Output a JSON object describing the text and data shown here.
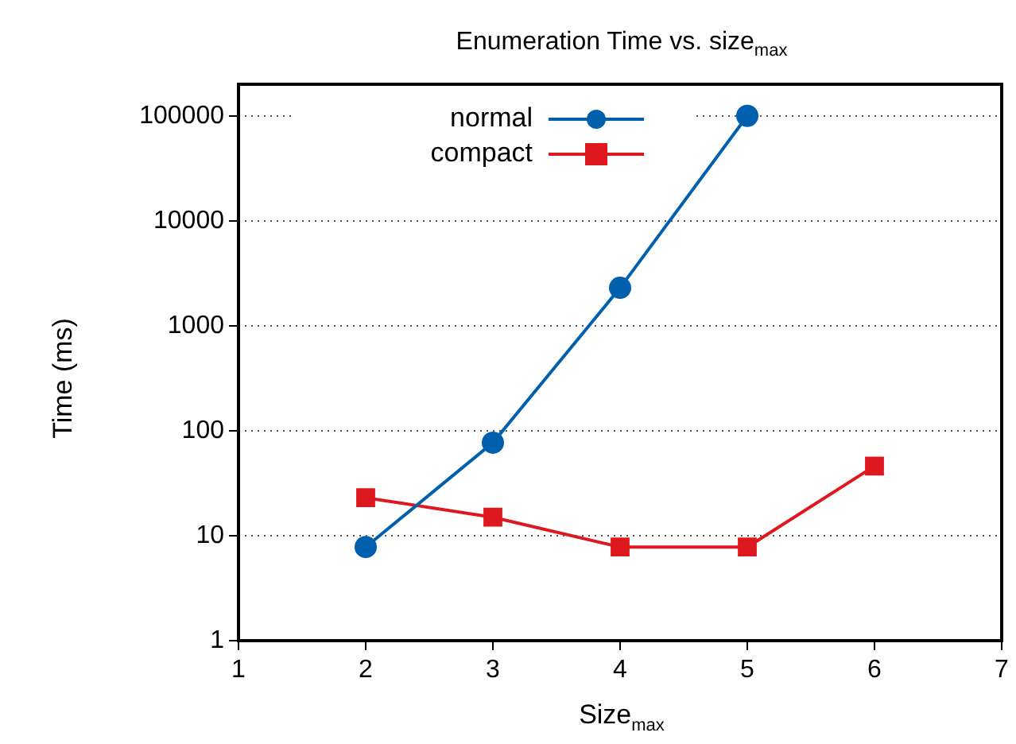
{
  "chart_data": {
    "type": "line",
    "title": "Enumeration Time vs. size$_{max}$",
    "xlabel": "Size$_{max}$",
    "ylabel": "Time (ms)",
    "x": [
      2,
      3,
      4,
      5,
      6
    ],
    "series": [
      {
        "name": "normal",
        "color": "#0060ad",
        "marker": "circle",
        "values": [
          7.8,
          77,
          2300,
          100000,
          null
        ]
      },
      {
        "name": "compact",
        "color": "#dd181f",
        "marker": "square",
        "values": [
          23,
          15,
          7.8,
          7.8,
          46
        ]
      }
    ],
    "xlim": [
      1,
      7
    ],
    "xticks": [
      1,
      2,
      3,
      4,
      5,
      6,
      7
    ],
    "ylim": [
      1,
      200000
    ],
    "yticks": [
      1,
      10,
      100,
      1000,
      10000,
      100000
    ],
    "log": "y",
    "grid": "y",
    "legend": "top left",
    "line_style": "solid"
  }
}
